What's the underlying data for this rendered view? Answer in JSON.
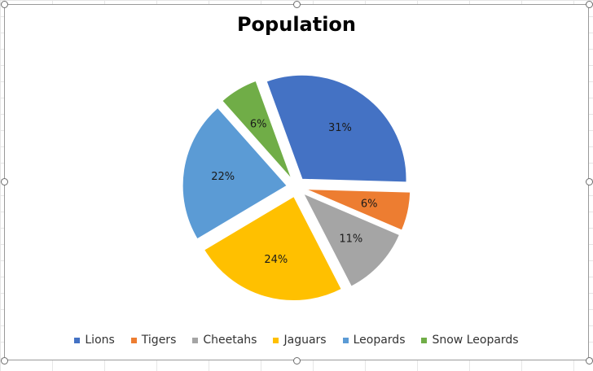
{
  "chart_data": {
    "type": "pie",
    "title": "Population",
    "categories": [
      "Lions",
      "Tigers",
      "Cheetahs",
      "Jaguars",
      "Leopards",
      "Snow Leopards"
    ],
    "values": [
      31,
      6,
      11,
      24,
      22,
      6
    ],
    "labels": [
      "31%",
      "6%",
      "11%",
      "24%",
      "22%",
      "6%"
    ],
    "colors": [
      "#4472C4",
      "#ED7D31",
      "#A5A5A5",
      "#FFC000",
      "#5B9BD5",
      "#70AD47"
    ],
    "exploded": true,
    "legend": "bottom"
  }
}
